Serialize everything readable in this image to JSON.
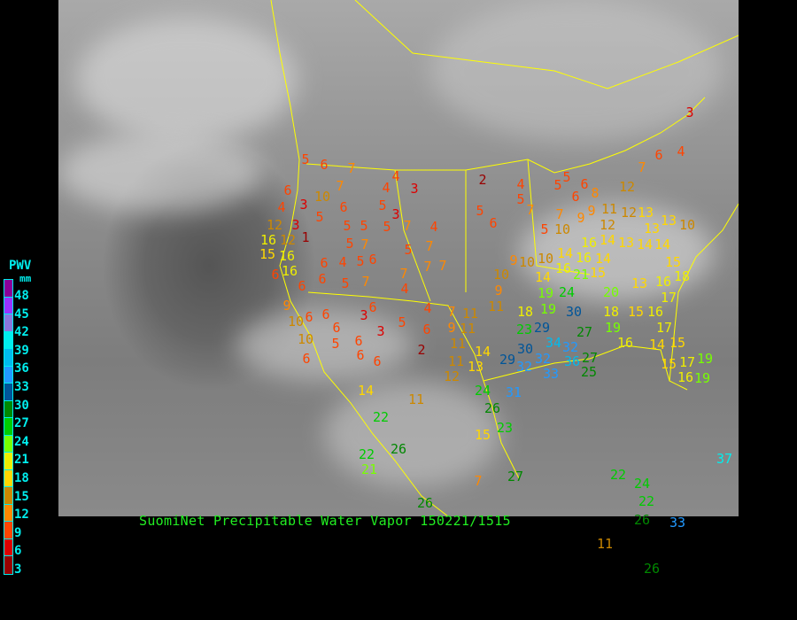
{
  "caption": "SuomiNet Precipitable Water Vapor 150221/1515",
  "legend": {
    "title": "PWV",
    "unit": "mm",
    "ticks": [
      "48",
      "45",
      "42",
      "39",
      "36",
      "33",
      "30",
      "27",
      "24",
      "21",
      "18",
      "15",
      "12",
      "9",
      "6",
      "3"
    ],
    "colors": [
      "#8b0099",
      "#9933ff",
      "#8877dd",
      "#00eeee",
      "#00bbee",
      "#2299ff",
      "#005599",
      "#008800",
      "#00cc00",
      "#77ff00",
      "#eeee00",
      "#ffd700",
      "#cc8800",
      "#ff8800",
      "#ff4400",
      "#dd0000",
      "#990000"
    ]
  },
  "border_color": "#ffff00",
  "stations": [
    3,
    4,
    6,
    7,
    12,
    5,
    6,
    7,
    4,
    4,
    3,
    2,
    4,
    5,
    5,
    5,
    6,
    8,
    6,
    6,
    3,
    10,
    7,
    4,
    5,
    6,
    5,
    3,
    5,
    5,
    5,
    7,
    4,
    5,
    6,
    7,
    7,
    9,
    10,
    5,
    9,
    11,
    12,
    12,
    13,
    13,
    13,
    10,
    12,
    16,
    12,
    1,
    3,
    5,
    7,
    6,
    5,
    7,
    15,
    16,
    16,
    6,
    4,
    5,
    6,
    6,
    6,
    5,
    7,
    7,
    7,
    7,
    4,
    10,
    10,
    9,
    10,
    14,
    16,
    14,
    16,
    16,
    15,
    14,
    14,
    13,
    14,
    14,
    15,
    18,
    9,
    11,
    19,
    24,
    21,
    20,
    13,
    16,
    17,
    9,
    10,
    6,
    6,
    6,
    3,
    6,
    3,
    5,
    4,
    6,
    2,
    7,
    11,
    9,
    11,
    18,
    19,
    30,
    18,
    15,
    16,
    17,
    15,
    10,
    5,
    6,
    6,
    6,
    6,
    11,
    14,
    11,
    13,
    12,
    23,
    29,
    27,
    34,
    30,
    32,
    32,
    29,
    32,
    33,
    36,
    27,
    25,
    19,
    16,
    14,
    15,
    17,
    19,
    16,
    19,
    14,
    11,
    24,
    31,
    26,
    22,
    23,
    15,
    26,
    22,
    21,
    7,
    27,
    22,
    24,
    22,
    26,
    33,
    37,
    26,
    11,
    26
  ]
}
